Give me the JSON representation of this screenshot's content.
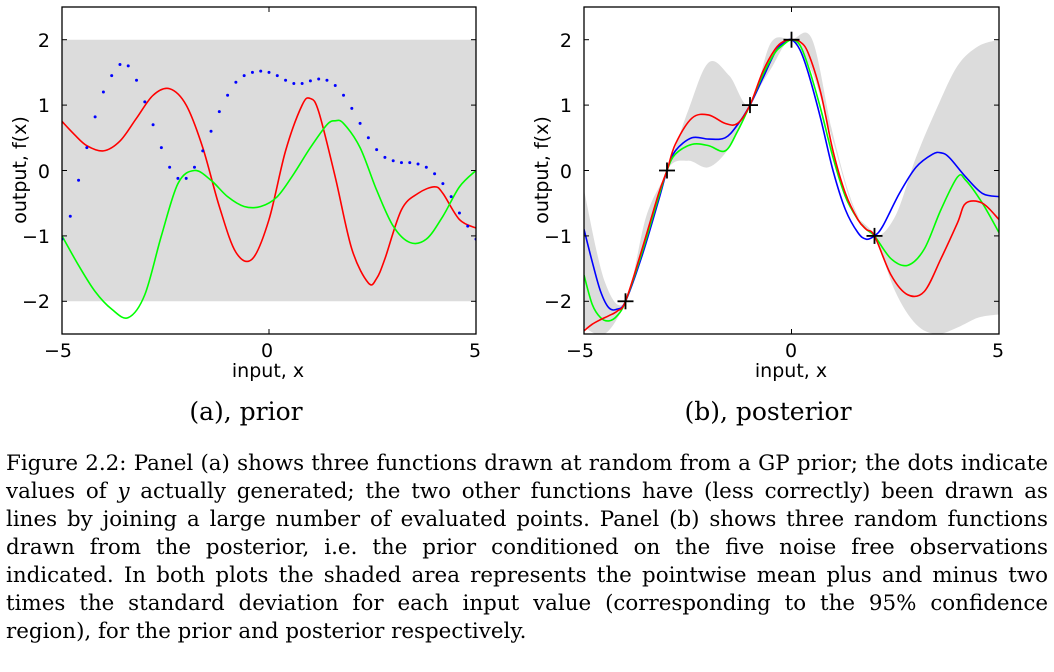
{
  "figure": {
    "panels": [
      {
        "caption": "(a), prior",
        "xlabel": "input, x",
        "ylabel": "output, f(x)",
        "xticks": [
          "−5",
          "0",
          "5"
        ],
        "yticks": [
          "−2",
          "−1",
          "0",
          "1",
          "2"
        ]
      },
      {
        "caption": "(b), posterior",
        "xlabel": "input, x",
        "ylabel": "output, f(x)",
        "xticks": [
          "−5",
          "0",
          "5"
        ],
        "yticks": [
          "−2",
          "−1",
          "0",
          "1",
          "2"
        ]
      }
    ]
  },
  "caption": {
    "part1": "Figure 2.2: Panel (a) shows three functions drawn at random from a GP prior; the dots indicate values of ",
    "var": "y",
    "part2": " actually generated; the two other functions have (less correctly) been drawn as lines by joining a large number of evaluated points. Panel (b) shows three random functions drawn from the posterior, i.e. the prior conditioned on the five noise free observations indicated. In both plots the shaded area represents the pointwise mean plus and minus two times the standard deviation for each input value (corresponding to the 95% confidence region), for the prior and posterior respectively."
  },
  "chart_data": [
    {
      "type": "line",
      "title": "(a), prior",
      "xlabel": "input, x",
      "ylabel": "output, f(x)",
      "xlim": [
        -5,
        5
      ],
      "ylim": [
        -2.5,
        2.5
      ],
      "band": {
        "x": [
          -5,
          5
        ],
        "lower": [
          -2,
          -2
        ],
        "upper": [
          2,
          2
        ],
        "color": "#dcdcdc"
      },
      "series": [
        {
          "name": "red",
          "style": "line",
          "color": "#ff0000",
          "x": [
            -5,
            -4.7,
            -4.4,
            -4.0,
            -3.6,
            -3.2,
            -2.8,
            -2.4,
            -2.0,
            -1.6,
            -1.2,
            -0.8,
            -0.4,
            0.0,
            0.4,
            0.8,
            1.0,
            1.2,
            1.6,
            2.0,
            2.4,
            2.6,
            2.8,
            3.2,
            3.6,
            4.0,
            4.2,
            4.6,
            5.0
          ],
          "y": [
            0.75,
            0.55,
            0.38,
            0.3,
            0.45,
            0.8,
            1.15,
            1.25,
            1.0,
            0.35,
            -0.55,
            -1.25,
            -1.35,
            -0.75,
            0.3,
            1.0,
            1.1,
            0.9,
            -0.1,
            -1.2,
            -1.72,
            -1.65,
            -1.35,
            -0.6,
            -0.35,
            -0.25,
            -0.35,
            -0.75,
            -0.88
          ]
        },
        {
          "name": "green",
          "style": "line",
          "color": "#00ff00",
          "x": [
            -5,
            -4.6,
            -4.2,
            -3.8,
            -3.4,
            -3.0,
            -2.6,
            -2.2,
            -1.8,
            -1.4,
            -1.0,
            -0.6,
            -0.2,
            0.2,
            0.6,
            1.0,
            1.4,
            1.6,
            1.8,
            2.2,
            2.6,
            3.0,
            3.4,
            3.8,
            4.2,
            4.6,
            5.0
          ],
          "y": [
            -1.0,
            -1.45,
            -1.85,
            -2.12,
            -2.25,
            -1.9,
            -1.0,
            -0.2,
            0.0,
            -0.15,
            -0.4,
            -0.55,
            -0.55,
            -0.4,
            -0.05,
            0.35,
            0.7,
            0.76,
            0.72,
            0.35,
            -0.3,
            -0.85,
            -1.1,
            -1.05,
            -0.7,
            -0.25,
            0.0
          ]
        },
        {
          "name": "dots",
          "style": "points",
          "color": "#0000ff",
          "x": [
            -5.0,
            -4.8,
            -4.6,
            -4.4,
            -4.2,
            -4.0,
            -3.8,
            -3.6,
            -3.4,
            -3.2,
            -3.0,
            -2.8,
            -2.6,
            -2.4,
            -2.2,
            -2.0,
            -1.8,
            -1.6,
            -1.4,
            -1.2,
            -1.0,
            -0.8,
            -0.6,
            -0.4,
            -0.2,
            0.0,
            0.2,
            0.4,
            0.6,
            0.8,
            1.0,
            1.2,
            1.4,
            1.6,
            1.8,
            2.0,
            2.2,
            2.4,
            2.6,
            2.8,
            3.0,
            3.2,
            3.4,
            3.6,
            3.8,
            4.0,
            4.2,
            4.4,
            4.6,
            4.8,
            5.0
          ],
          "y": [
            -1.05,
            -0.7,
            -0.15,
            0.35,
            0.82,
            1.2,
            1.45,
            1.62,
            1.6,
            1.38,
            1.05,
            0.7,
            0.35,
            0.05,
            -0.12,
            -0.12,
            0.05,
            0.3,
            0.6,
            0.9,
            1.15,
            1.35,
            1.45,
            1.5,
            1.52,
            1.5,
            1.45,
            1.38,
            1.33,
            1.33,
            1.37,
            1.4,
            1.38,
            1.3,
            1.15,
            0.95,
            0.72,
            0.5,
            0.32,
            0.2,
            0.15,
            0.12,
            0.12,
            0.1,
            0.05,
            -0.05,
            -0.2,
            -0.4,
            -0.65,
            -0.85,
            -1.05
          ]
        }
      ]
    },
    {
      "type": "line",
      "title": "(b), posterior",
      "xlabel": "input, x",
      "ylabel": "output, f(x)",
      "xlim": [
        -5,
        5
      ],
      "ylim": [
        -2.5,
        2.5
      ],
      "band": {
        "x": [
          -5.0,
          -4.5,
          -4.0,
          -3.5,
          -3.0,
          -2.5,
          -2.0,
          -1.5,
          -1.0,
          -0.5,
          0.0,
          0.5,
          1.0,
          1.5,
          2.0,
          2.5,
          3.0,
          3.5,
          4.0,
          4.5,
          5.0
        ],
        "lower": [
          -2.4,
          -2.5,
          -2.0,
          -1.0,
          0.0,
          0.15,
          0.05,
          0.35,
          1.0,
          1.55,
          2.0,
          1.5,
          0.45,
          -0.6,
          -1.0,
          -1.85,
          -2.35,
          -2.5,
          -2.4,
          -2.25,
          -2.2
        ],
        "upper": [
          -0.3,
          -1.7,
          -2.0,
          -0.7,
          0.0,
          0.9,
          1.65,
          1.45,
          1.0,
          1.95,
          2.0,
          2.0,
          0.55,
          -0.55,
          -1.0,
          -0.7,
          0.2,
          0.95,
          1.6,
          1.9,
          2.0
        ],
        "color": "#dcdcdc"
      },
      "observations": {
        "x": [
          -4,
          -3,
          -1,
          0,
          2
        ],
        "y": [
          -2,
          0,
          1,
          2,
          -1
        ]
      },
      "series": [
        {
          "name": "blue",
          "style": "line",
          "color": "#0000ff",
          "x": [
            -5.0,
            -4.8,
            -4.6,
            -4.4,
            -4.2,
            -4.0,
            -3.6,
            -3.2,
            -3.0,
            -2.8,
            -2.4,
            -2.0,
            -1.6,
            -1.3,
            -1.0,
            -0.7,
            -0.4,
            -0.2,
            0.0,
            0.2,
            0.4,
            0.7,
            1.0,
            1.3,
            1.6,
            1.8,
            2.0,
            2.2,
            2.6,
            3.0,
            3.4,
            3.6,
            3.8,
            4.2,
            4.6,
            5.0
          ],
          "y": [
            -0.9,
            -1.4,
            -1.85,
            -2.1,
            -2.12,
            -2.0,
            -1.3,
            -0.45,
            0.0,
            0.3,
            0.5,
            0.48,
            0.5,
            0.7,
            1.0,
            1.4,
            1.8,
            1.95,
            2.0,
            1.85,
            1.5,
            0.8,
            0.0,
            -0.6,
            -0.95,
            -1.05,
            -1.0,
            -0.85,
            -0.35,
            0.05,
            0.25,
            0.27,
            0.2,
            -0.1,
            -0.35,
            -0.4
          ]
        },
        {
          "name": "green",
          "style": "line",
          "color": "#00ff00",
          "x": [
            -5.0,
            -4.8,
            -4.6,
            -4.4,
            -4.2,
            -4.0,
            -3.6,
            -3.2,
            -3.0,
            -2.8,
            -2.4,
            -2.0,
            -1.6,
            -1.3,
            -1.0,
            -0.7,
            -0.4,
            -0.2,
            0.0,
            0.2,
            0.4,
            0.7,
            1.0,
            1.3,
            1.6,
            1.8,
            2.0,
            2.4,
            2.8,
            3.2,
            3.6,
            4.0,
            4.2,
            4.6,
            5.0
          ],
          "y": [
            -1.6,
            -2.05,
            -2.25,
            -2.3,
            -2.22,
            -2.0,
            -1.25,
            -0.4,
            0.0,
            0.25,
            0.4,
            0.38,
            0.3,
            0.6,
            1.0,
            1.45,
            1.8,
            1.92,
            2.0,
            1.92,
            1.6,
            0.95,
            0.2,
            -0.4,
            -0.75,
            -0.9,
            -1.0,
            -1.35,
            -1.45,
            -1.2,
            -0.6,
            -0.1,
            -0.15,
            -0.5,
            -0.95
          ]
        },
        {
          "name": "red",
          "style": "line",
          "color": "#ff0000",
          "x": [
            -5.0,
            -4.8,
            -4.6,
            -4.4,
            -4.2,
            -4.0,
            -3.6,
            -3.2,
            -3.0,
            -2.8,
            -2.4,
            -2.0,
            -1.6,
            -1.3,
            -1.0,
            -0.7,
            -0.4,
            -0.2,
            0.0,
            0.2,
            0.4,
            0.7,
            1.0,
            1.3,
            1.6,
            1.8,
            2.0,
            2.4,
            2.8,
            3.2,
            3.6,
            4.0,
            4.2,
            4.6,
            5.0
          ],
          "y": [
            -2.45,
            -2.35,
            -2.28,
            -2.22,
            -2.15,
            -2.0,
            -1.2,
            -0.35,
            0.0,
            0.4,
            0.8,
            0.85,
            0.72,
            0.72,
            1.0,
            1.5,
            1.85,
            1.97,
            2.0,
            1.97,
            1.8,
            1.2,
            0.3,
            -0.35,
            -0.75,
            -0.9,
            -1.0,
            -1.6,
            -1.9,
            -1.85,
            -1.35,
            -0.8,
            -0.5,
            -0.5,
            -0.75
          ]
        }
      ]
    }
  ]
}
